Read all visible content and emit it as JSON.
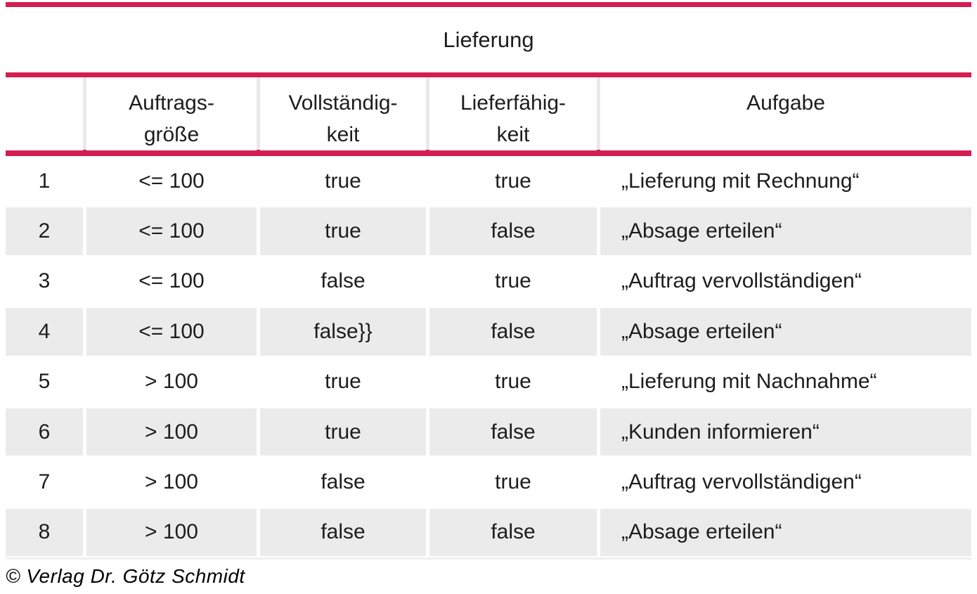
{
  "table": {
    "title": "Lieferung",
    "columns": [
      "",
      "Auftrags-\ngröße",
      "Vollständig-\nkeit",
      "Lieferfähig-\nkeit",
      "Aufgabe"
    ],
    "rows": [
      {
        "nr": "1",
        "groesse": "<= 100",
        "vollst": "true",
        "lieferf": "true",
        "aufgabe": "„Lieferung mit Rechnung“"
      },
      {
        "nr": "2",
        "groesse": "<= 100",
        "vollst": "true",
        "lieferf": "false",
        "aufgabe": "„Absage erteilen“"
      },
      {
        "nr": "3",
        "groesse": "<= 100",
        "vollst": "false",
        "lieferf": "true",
        "aufgabe": "„Auftrag vervollständigen“"
      },
      {
        "nr": "4",
        "groesse": "<= 100",
        "vollst": "false}}",
        "lieferf": "false",
        "aufgabe": "„Absage erteilen“"
      },
      {
        "nr": "5",
        "groesse": "> 100",
        "vollst": "true",
        "lieferf": "true",
        "aufgabe": "„Lieferung mit Nachnahme“"
      },
      {
        "nr": "6",
        "groesse": "> 100",
        "vollst": "true",
        "lieferf": "false",
        "aufgabe": "„Kunden informieren“"
      },
      {
        "nr": "7",
        "groesse": "> 100",
        "vollst": "false",
        "lieferf": "true",
        "aufgabe": "„Auftrag vervollständigen“"
      },
      {
        "nr": "8",
        "groesse": "> 100",
        "vollst": "false",
        "lieferf": "false",
        "aufgabe": "„Absage erteilen“"
      }
    ]
  },
  "footer": {
    "copyright": "© Verlag Dr. Götz Schmidt"
  },
  "colors": {
    "accent": "#d51d52",
    "row_shade": "#ebebeb",
    "header_divider": "#e9e9e9",
    "text": "#1d1d1d"
  }
}
